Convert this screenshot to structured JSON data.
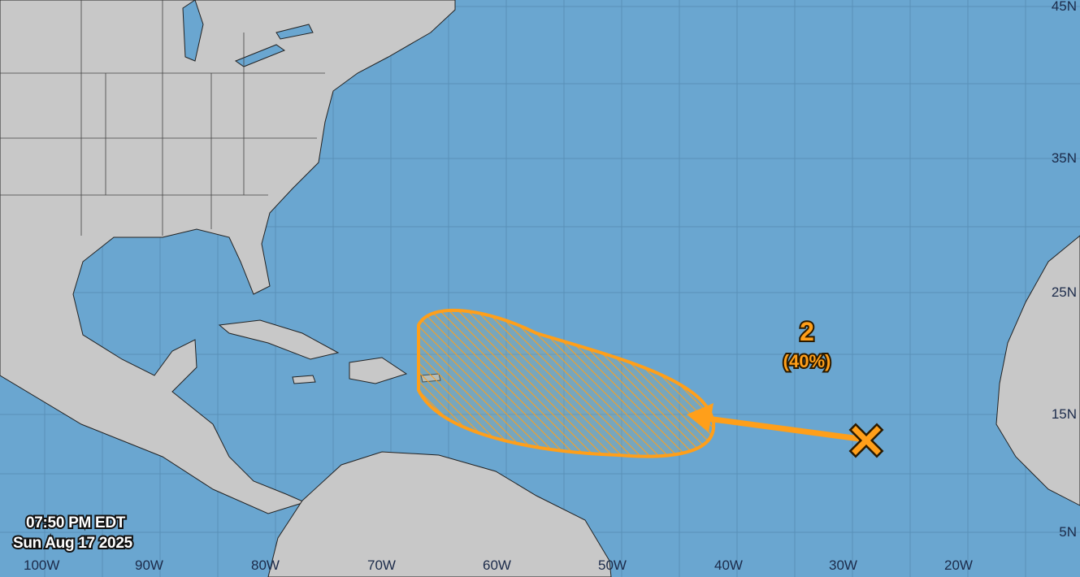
{
  "timestamp": {
    "time": "07:50 PM EDT",
    "date": "Sun Aug 17 2025"
  },
  "longitude_labels": [
    "100W",
    "90W",
    "80W",
    "70W",
    "60W",
    "50W",
    "40W",
    "30W",
    "20W"
  ],
  "latitude_labels": [
    "45N",
    "35N",
    "25N",
    "15N",
    "5N"
  ],
  "disturbance": {
    "number": "2",
    "probability": "(40%)",
    "color": "#ff9f1a",
    "marker": "x-icon"
  },
  "colors": {
    "ocean": "#6aa6d0",
    "land": "#c8c8c8",
    "borders": "#333333"
  }
}
